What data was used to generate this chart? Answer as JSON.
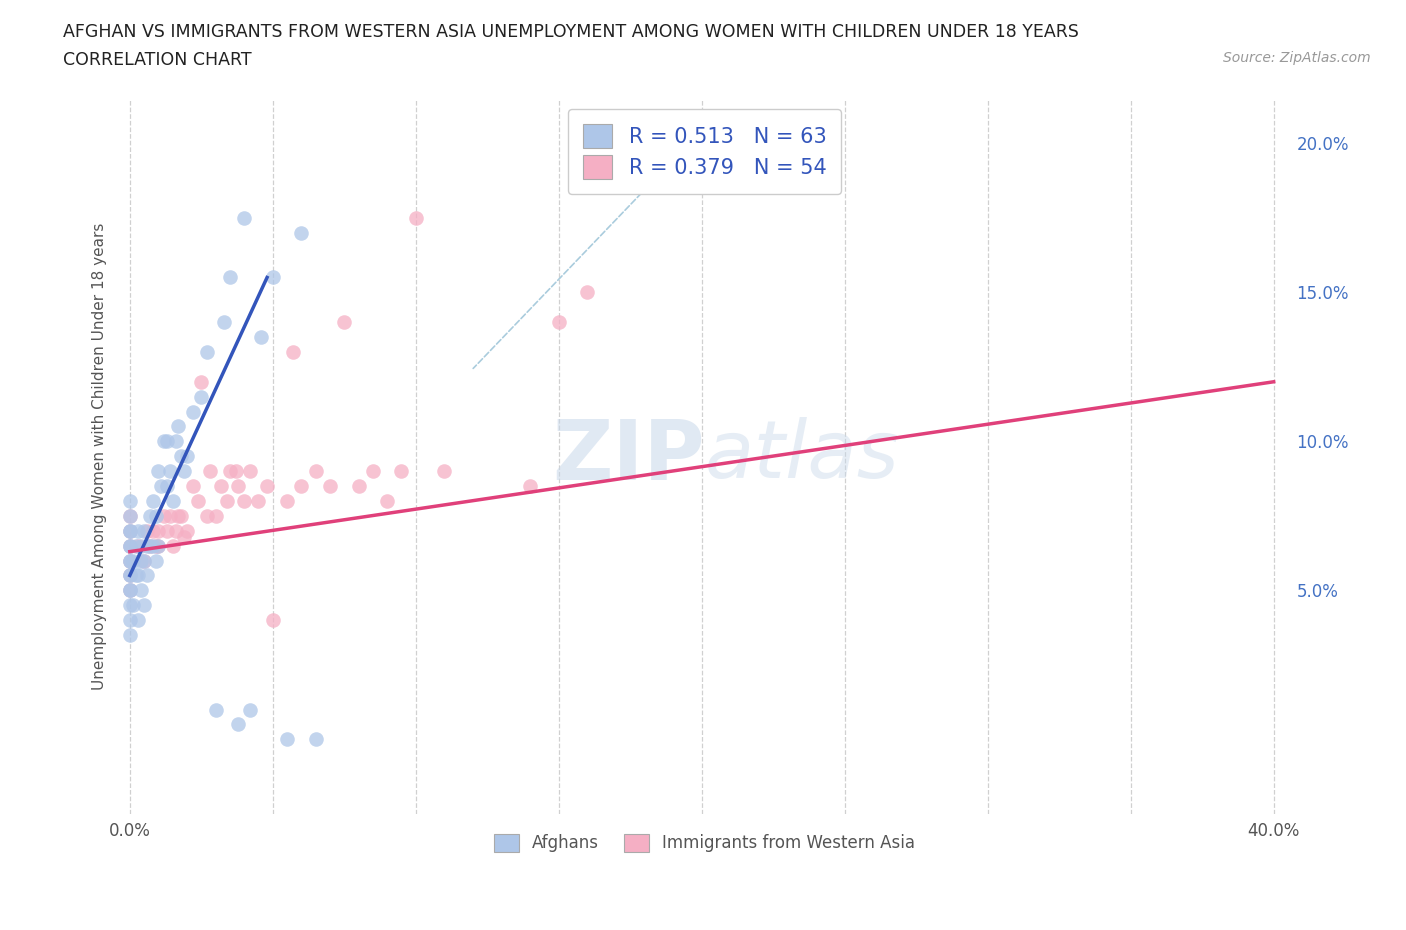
{
  "title_line1": "AFGHAN VS IMMIGRANTS FROM WESTERN ASIA UNEMPLOYMENT AMONG WOMEN WITH CHILDREN UNDER 18 YEARS",
  "title_line2": "CORRELATION CHART",
  "source_text": "Source: ZipAtlas.com",
  "ylabel": "Unemployment Among Women with Children Under 18 years",
  "xlim": [
    -0.003,
    0.405
  ],
  "ylim": [
    -0.025,
    0.215
  ],
  "x_tick_positions": [
    0.0,
    0.05,
    0.1,
    0.15,
    0.2,
    0.25,
    0.3,
    0.35,
    0.4
  ],
  "x_tick_labels": [
    "0.0%",
    "",
    "",
    "",
    "",
    "",
    "",
    "",
    "40.0%"
  ],
  "y_tick_positions": [
    0.0,
    0.05,
    0.1,
    0.15,
    0.2
  ],
  "y_tick_labels": [
    "",
    "5.0%",
    "10.0%",
    "15.0%",
    "20.0%"
  ],
  "grid_color": "#d0d0d0",
  "background_color": "#ffffff",
  "legend_R1": "0.513",
  "legend_N1": "63",
  "legend_R2": "0.379",
  "legend_N2": "54",
  "afghan_color": "#aec6e8",
  "western_asia_color": "#f5afc4",
  "afghan_line_color": "#3355bb",
  "western_asia_line_color": "#e0407a",
  "legend_text_color": "#3355bb",
  "label_afghans": "Afghans",
  "label_western": "Immigrants from Western Asia",
  "afghan_x": [
    0.0,
    0.0,
    0.0,
    0.0,
    0.0,
    0.0,
    0.0,
    0.0,
    0.0,
    0.0,
    0.0,
    0.0,
    0.0,
    0.0,
    0.0,
    0.001,
    0.001,
    0.002,
    0.002,
    0.003,
    0.003,
    0.003,
    0.004,
    0.004,
    0.004,
    0.005,
    0.005,
    0.005,
    0.006,
    0.006,
    0.007,
    0.007,
    0.008,
    0.008,
    0.009,
    0.009,
    0.01,
    0.01,
    0.011,
    0.012,
    0.013,
    0.013,
    0.014,
    0.015,
    0.016,
    0.017,
    0.018,
    0.019,
    0.02,
    0.022,
    0.025,
    0.027,
    0.03,
    0.033,
    0.035,
    0.038,
    0.04,
    0.042,
    0.046,
    0.05,
    0.055,
    0.06,
    0.065
  ],
  "afghan_y": [
    0.05,
    0.055,
    0.06,
    0.065,
    0.065,
    0.07,
    0.07,
    0.075,
    0.08,
    0.04,
    0.045,
    0.05,
    0.055,
    0.06,
    0.035,
    0.045,
    0.06,
    0.055,
    0.065,
    0.04,
    0.055,
    0.07,
    0.05,
    0.06,
    0.065,
    0.045,
    0.06,
    0.07,
    0.055,
    0.065,
    0.065,
    0.075,
    0.065,
    0.08,
    0.06,
    0.075,
    0.065,
    0.09,
    0.085,
    0.1,
    0.085,
    0.1,
    0.09,
    0.08,
    0.1,
    0.105,
    0.095,
    0.09,
    0.095,
    0.11,
    0.115,
    0.13,
    0.01,
    0.14,
    0.155,
    0.005,
    0.175,
    0.01,
    0.135,
    0.155,
    0.0,
    0.17,
    0.0
  ],
  "western_x": [
    0.0,
    0.0,
    0.0,
    0.0,
    0.0,
    0.0,
    0.003,
    0.005,
    0.006,
    0.007,
    0.008,
    0.009,
    0.01,
    0.01,
    0.012,
    0.013,
    0.014,
    0.015,
    0.016,
    0.017,
    0.018,
    0.019,
    0.02,
    0.022,
    0.024,
    0.025,
    0.027,
    0.028,
    0.03,
    0.032,
    0.034,
    0.035,
    0.037,
    0.038,
    0.04,
    0.042,
    0.045,
    0.048,
    0.05,
    0.055,
    0.057,
    0.06,
    0.065,
    0.07,
    0.075,
    0.08,
    0.085,
    0.09,
    0.095,
    0.1,
    0.11,
    0.14,
    0.15,
    0.16
  ],
  "western_y": [
    0.05,
    0.055,
    0.06,
    0.065,
    0.07,
    0.075,
    0.065,
    0.06,
    0.07,
    0.065,
    0.07,
    0.065,
    0.07,
    0.065,
    0.075,
    0.07,
    0.075,
    0.065,
    0.07,
    0.075,
    0.075,
    0.068,
    0.07,
    0.085,
    0.08,
    0.12,
    0.075,
    0.09,
    0.075,
    0.085,
    0.08,
    0.09,
    0.09,
    0.085,
    0.08,
    0.09,
    0.08,
    0.085,
    0.04,
    0.08,
    0.13,
    0.085,
    0.09,
    0.085,
    0.14,
    0.085,
    0.09,
    0.08,
    0.09,
    0.175,
    0.09,
    0.085,
    0.14,
    0.15
  ],
  "afghan_line_x": [
    0.0,
    0.048
  ],
  "afghan_line_y": [
    0.055,
    0.155
  ],
  "western_line_x": [
    0.0,
    0.4
  ],
  "western_line_y": [
    0.063,
    0.12
  ]
}
